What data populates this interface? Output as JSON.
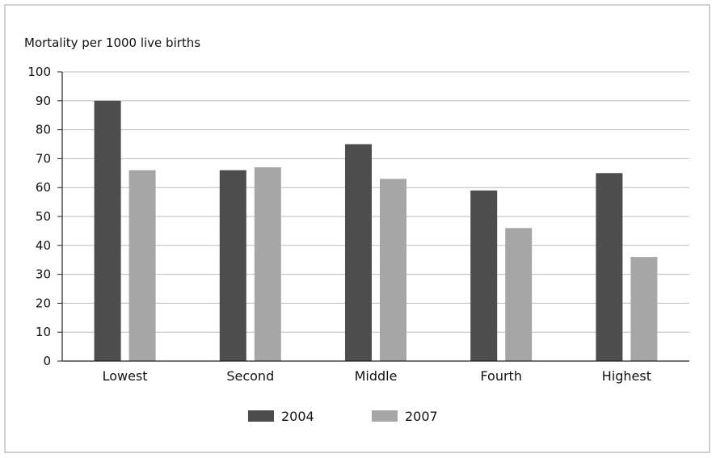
{
  "chart_data": {
    "type": "bar",
    "ylabel": "Mortality per 1000 live births",
    "categories": [
      "Lowest",
      "Second",
      "Middle",
      "Fourth",
      "Highest"
    ],
    "series": [
      {
        "name": "2004",
        "color": "#4d4d4d",
        "values": [
          90,
          66,
          75,
          59,
          65
        ]
      },
      {
        "name": "2007",
        "color": "#a6a6a6",
        "values": [
          66,
          67,
          63,
          46,
          36
        ]
      }
    ],
    "ylim": [
      0,
      100
    ],
    "yticks": [
      0,
      10,
      20,
      30,
      40,
      50,
      60,
      70,
      80,
      90,
      100
    ],
    "grid": true,
    "legend_position": "bottom"
  }
}
